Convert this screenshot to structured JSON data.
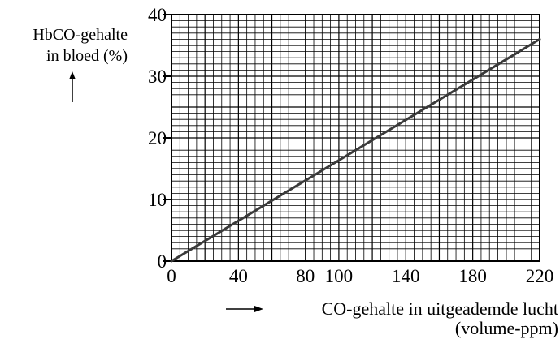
{
  "chart_data": {
    "type": "line",
    "ylabel_lines": [
      "HbCO-gehalte",
      "in bloed (%)"
    ],
    "xlabel_lines": [
      "CO-gehalte in uitgeademde lucht",
      "(volume-ppm)"
    ],
    "x_ticks": [
      0,
      40,
      80,
      100,
      140,
      180,
      220
    ],
    "y_ticks": [
      0,
      10,
      20,
      30,
      40
    ],
    "xlim": [
      0,
      220
    ],
    "ylim": [
      0,
      40
    ],
    "grid": true,
    "grid_minor_x": 5,
    "grid_minor_y": 1,
    "series": [
      {
        "points": [
          [
            0,
            0
          ],
          [
            220,
            36
          ]
        ]
      }
    ],
    "colors": {
      "grid": "#000000",
      "line": "#3a3a3a"
    }
  }
}
